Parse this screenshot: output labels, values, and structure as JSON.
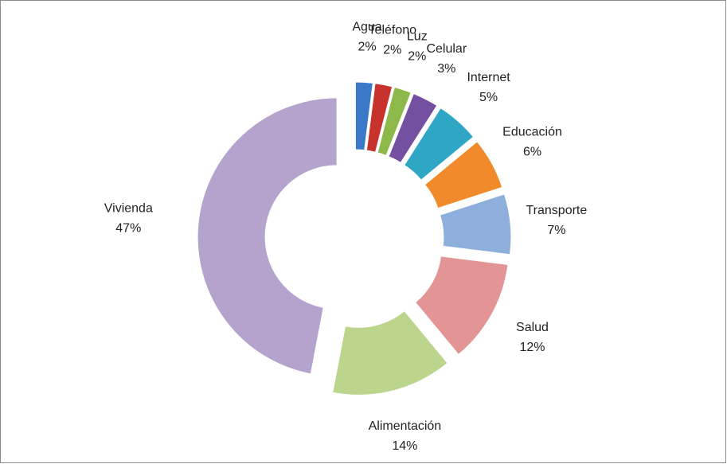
{
  "chart_data": {
    "type": "doughnut",
    "categories": [
      "Agua",
      "Teléfono",
      "Luz",
      "Celular",
      "Internet",
      "Educación",
      "Transporte",
      "Salud",
      "Alimentación",
      "Vivienda"
    ],
    "values": [
      2,
      2,
      2,
      3,
      5,
      6,
      7,
      12,
      14,
      47
    ],
    "value_labels": [
      "2%",
      "2%",
      "2%",
      "3%",
      "5%",
      "6%",
      "7%",
      "12%",
      "14%",
      "47%"
    ],
    "colors": [
      "#3a78c8",
      "#c8322c",
      "#8db84a",
      "#7650a0",
      "#2fa6c4",
      "#f08a2a",
      "#8eaedb",
      "#e39596",
      "#bcd58c",
      "#b4a3cc"
    ]
  }
}
